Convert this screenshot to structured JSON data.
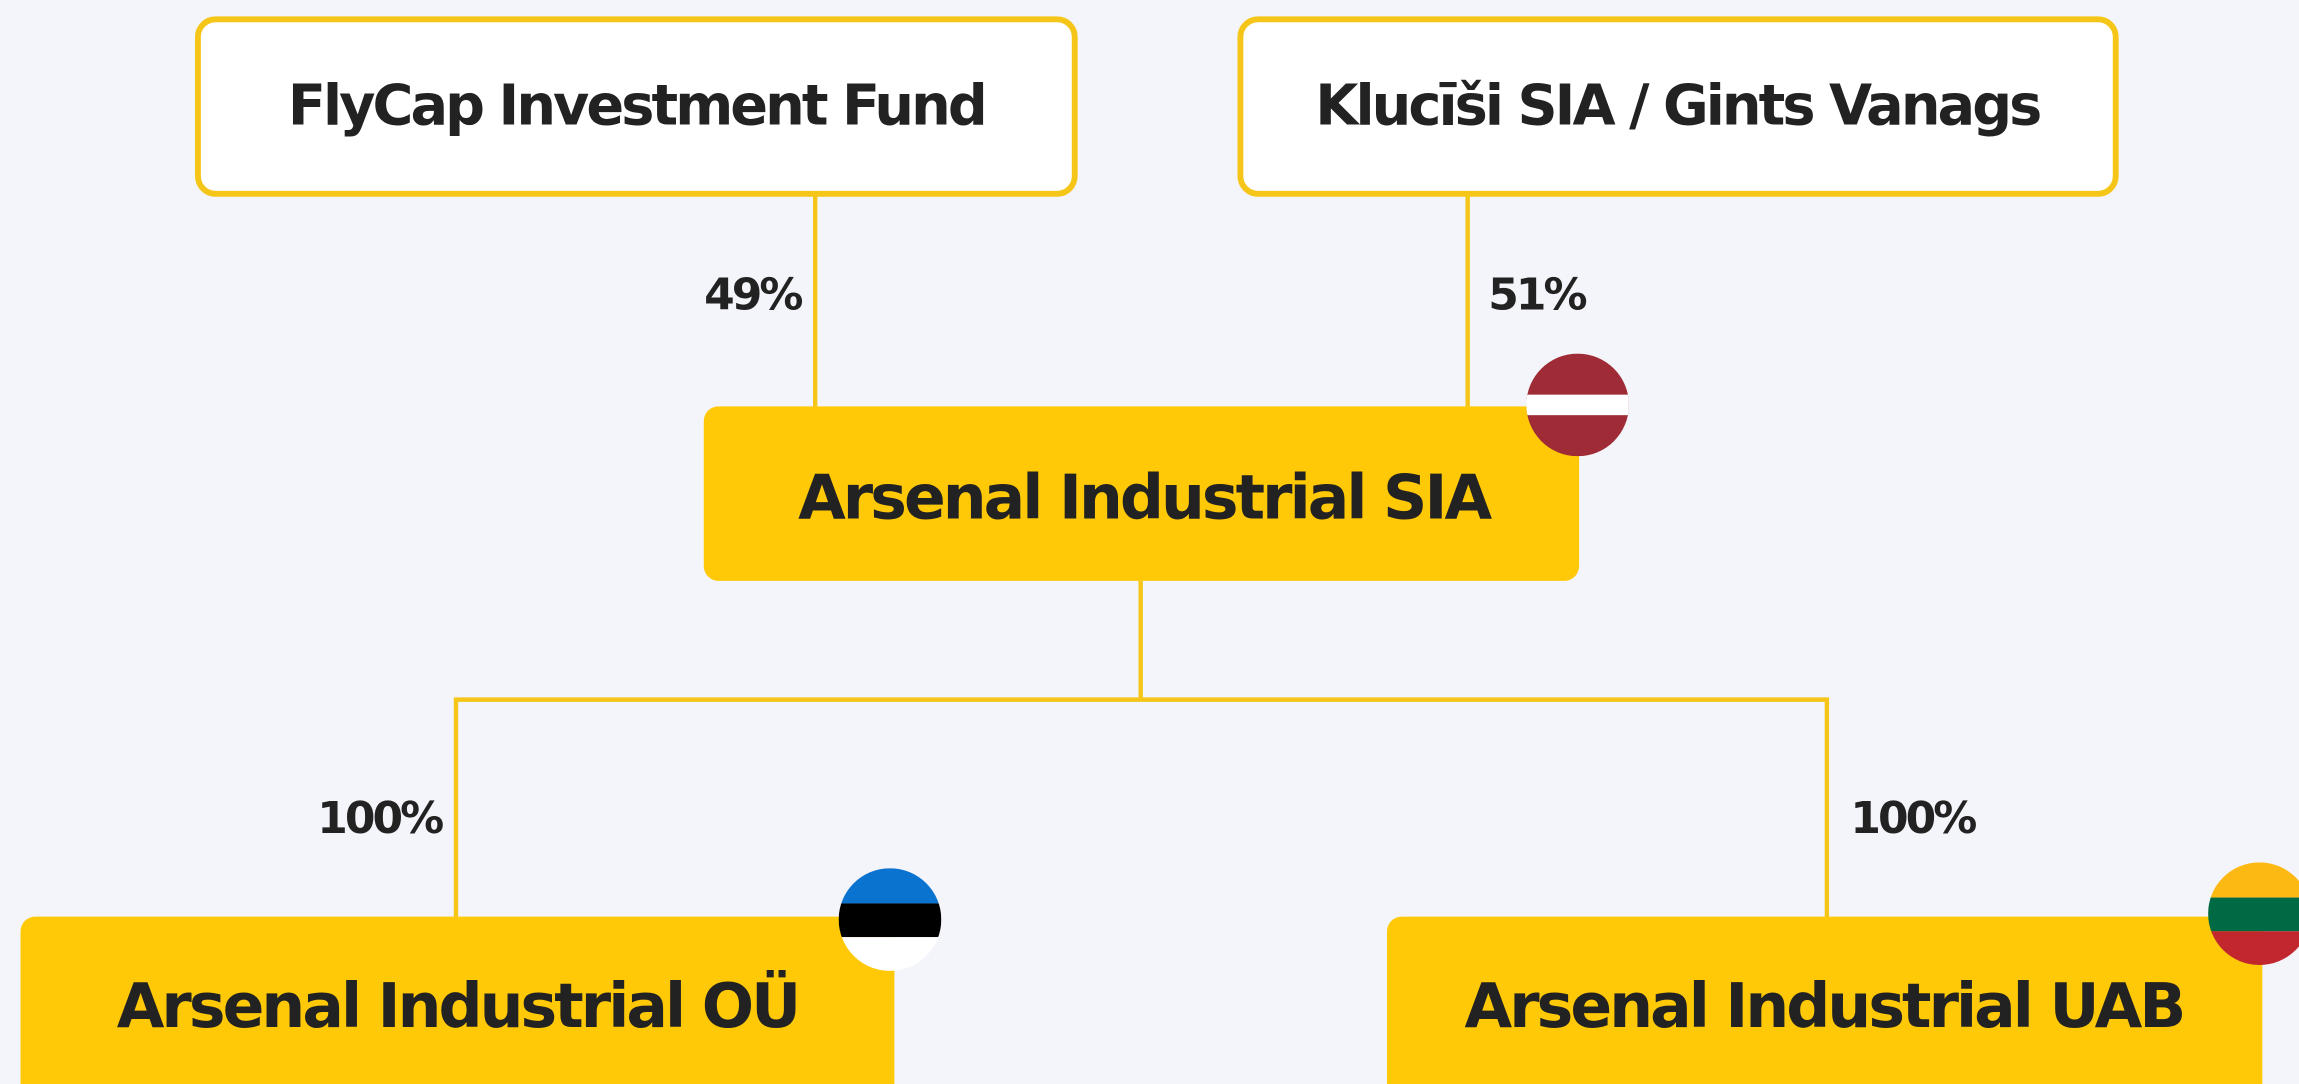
{
  "nodes": [
    {
      "label": "FlyCap Investment Fund"
    },
    {
      "label": "Klucīši SIA / Gints Vanags"
    },
    {
      "label": "Arsenal Industrial SIA"
    },
    {
      "label": "Arsenal Industrial OÜ"
    },
    {
      "label": "Arsenal Industrial UAB"
    }
  ],
  "edges": [
    {
      "label": "49%"
    },
    {
      "label": "51%"
    },
    {
      "label": "100%"
    },
    {
      "label": "100%"
    }
  ]
}
